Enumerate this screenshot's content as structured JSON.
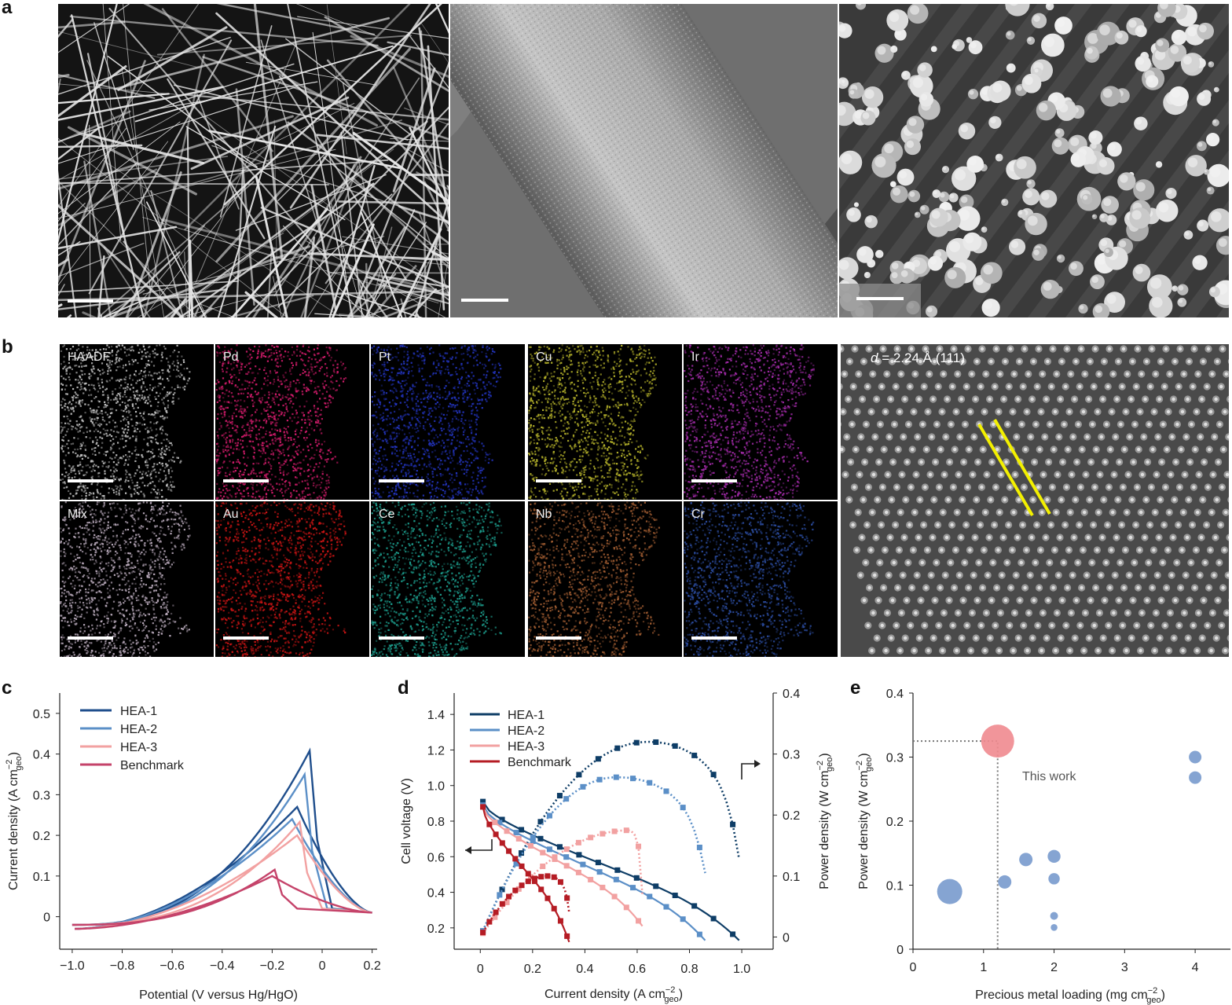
{
  "panels": {
    "a": "a",
    "b": "b",
    "c": "c",
    "d": "d",
    "e": "e"
  },
  "panel_b": {
    "maps": [
      {
        "label": "HAADF",
        "color": "#bdbdbd"
      },
      {
        "label": "Pd",
        "color": "#d11b6a"
      },
      {
        "label": "Pt",
        "color": "#2233bb"
      },
      {
        "label": "Cu",
        "color": "#b5b22a"
      },
      {
        "label": "Ir",
        "color": "#a02aa6"
      },
      {
        "label": "Mix",
        "color": "#b7a8b9"
      },
      {
        "label": "Au",
        "color": "#c81414"
      },
      {
        "label": "Ce",
        "color": "#1c9c8c"
      },
      {
        "label": "Nb",
        "color": "#9c5a30"
      },
      {
        "label": "Cr",
        "color": "#2a4a9c"
      }
    ],
    "hrtem_label_prefix": "d",
    "hrtem_label_suffix": " = 2.24 Å (111)"
  },
  "chart_data": [
    {
      "id": "c",
      "type": "line",
      "xlabel": "Potential (V versus Hg/HgO)",
      "ylabel_main": "Current density (A cm",
      "ylabel_sup": "−2",
      "ylabel_sub": "geo",
      "ylabel_end": ")",
      "xlim": [
        -1.05,
        0.22
      ],
      "ylim": [
        -0.08,
        0.55
      ],
      "xticks": [
        "−1.0",
        "−0.8",
        "−0.6",
        "−0.4",
        "−0.2",
        "0",
        "0.2"
      ],
      "xtick_values": [
        -1.0,
        -0.8,
        -0.6,
        -0.4,
        -0.2,
        0,
        0.2
      ],
      "yticks": [
        "0",
        "0.1",
        "0.2",
        "0.3",
        "0.4",
        "0.5"
      ],
      "ytick_values": [
        0,
        0.1,
        0.2,
        0.3,
        0.4,
        0.5
      ],
      "legend": [
        "HEA-1",
        "HEA-2",
        "HEA-3",
        "Benchmark"
      ],
      "colors": [
        "#1f4e8c",
        "#5b8fc7",
        "#f2a1a1",
        "#c5436a"
      ],
      "series": [
        {
          "name": "HEA-1",
          "peak_x": -0.04,
          "peak_y": 0.42,
          "hump_x": -0.1,
          "hump_y": 0.27
        },
        {
          "name": "HEA-2",
          "peak_x": -0.06,
          "peak_y": 0.36,
          "hump_x": -0.12,
          "hump_y": 0.24
        },
        {
          "name": "HEA-3",
          "peak_x": -0.08,
          "peak_y": 0.24,
          "hump_x": -0.1,
          "hump_y": 0.2
        },
        {
          "name": "Benchmark",
          "peak_x": -0.18,
          "peak_y": 0.12,
          "hump_x": -0.2,
          "hump_y": 0.1
        }
      ]
    },
    {
      "id": "d",
      "type": "line",
      "xlabel_main": "Current density (A cm",
      "xlabel_sup": "−2",
      "xlabel_sub": "geo",
      "xlabel_end": ")",
      "ylabel_left": "Cell voltage (V)",
      "ylabel_right_main": "Power density (W cm",
      "ylabel_right_sup": "−2",
      "ylabel_right_sub": "geo",
      "ylabel_right_end": ")",
      "xlim": [
        -0.1,
        1.12
      ],
      "ylim_left": [
        0.08,
        1.52
      ],
      "ylim_right": [
        -0.02,
        0.4
      ],
      "xticks": [
        "0",
        "0.2",
        "0.4",
        "0.6",
        "0.8",
        "1.0"
      ],
      "xtick_values": [
        0,
        0.2,
        0.4,
        0.6,
        0.8,
        1.0
      ],
      "yticks_left": [
        "0.2",
        "0.4",
        "0.6",
        "0.8",
        "1.0",
        "1.2",
        "1.4"
      ],
      "ytick_left_values": [
        0.2,
        0.4,
        0.6,
        0.8,
        1.0,
        1.2,
        1.4
      ],
      "yticks_right": [
        "0",
        "0.1",
        "0.2",
        "0.3",
        "0.4"
      ],
      "ytick_right_values": [
        0,
        0.1,
        0.2,
        0.3,
        0.4
      ],
      "legend": [
        "HEA-1",
        "HEA-2",
        "HEA-3",
        "Benchmark"
      ],
      "colors": [
        "#0e3d66",
        "#5b8fc7",
        "#f2a1a1",
        "#b51c24"
      ],
      "series": [
        {
          "name": "HEA-1",
          "jmax": 0.99,
          "v0": 0.91,
          "vend": 0.13,
          "pmax": 0.32,
          "jpmax": 0.64
        },
        {
          "name": "HEA-2",
          "jmax": 0.86,
          "v0": 0.89,
          "vend": 0.13,
          "pmax": 0.262,
          "jpmax": 0.52
        },
        {
          "name": "HEA-3",
          "jmax": 0.62,
          "v0": 0.88,
          "vend": 0.21,
          "pmax": 0.175,
          "jpmax": 0.57
        },
        {
          "name": "Benchmark",
          "jmax": 0.34,
          "v0": 0.88,
          "vend": 0.12,
          "pmax": 0.1,
          "jpmax": 0.26
        }
      ]
    },
    {
      "id": "e",
      "type": "scatter",
      "xlabel_main": "Precious metal loading (mg cm",
      "xlabel_sup": "−2",
      "xlabel_sub": "geo",
      "xlabel_end": ")",
      "ylabel_main": "Power density (W cm",
      "ylabel_sup": "−2",
      "ylabel_sub": "geo",
      "ylabel_end": ")",
      "xlim": [
        0,
        4.5
      ],
      "ylim": [
        0,
        0.4
      ],
      "xticks": [
        "0",
        "1",
        "2",
        "3",
        "4"
      ],
      "xtick_values": [
        0,
        1,
        2,
        3,
        4
      ],
      "yticks": [
        "0",
        "0.1",
        "0.2",
        "0.3",
        "0.4"
      ],
      "ytick_values": [
        0,
        0.1,
        0.2,
        0.3,
        0.4
      ],
      "annotation": "This work",
      "highlight_color": "#f08a8f",
      "point_color": "#7e9fd0",
      "points": [
        {
          "x": 1.2,
          "y": 0.325,
          "size": 2.0,
          "highlight": true
        },
        {
          "x": 0.52,
          "y": 0.09,
          "size": 1.5,
          "highlight": false
        },
        {
          "x": 1.3,
          "y": 0.105,
          "size": 0.75,
          "highlight": false
        },
        {
          "x": 1.6,
          "y": 0.14,
          "size": 0.75,
          "highlight": false
        },
        {
          "x": 2.0,
          "y": 0.145,
          "size": 0.72,
          "highlight": false
        },
        {
          "x": 2.0,
          "y": 0.11,
          "size": 0.62,
          "highlight": false
        },
        {
          "x": 2.0,
          "y": 0.052,
          "size": 0.4,
          "highlight": false
        },
        {
          "x": 2.0,
          "y": 0.034,
          "size": 0.33,
          "highlight": false
        },
        {
          "x": 4.0,
          "y": 0.3,
          "size": 0.7,
          "highlight": false
        },
        {
          "x": 4.0,
          "y": 0.268,
          "size": 0.7,
          "highlight": false
        }
      ]
    }
  ]
}
